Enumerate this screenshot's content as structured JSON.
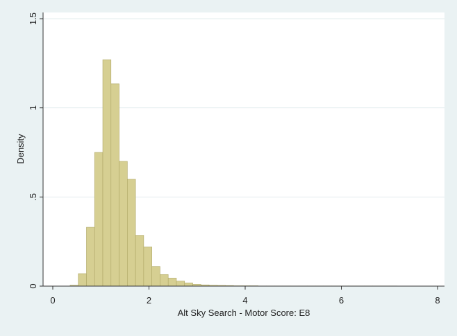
{
  "chart_data": {
    "type": "histogram",
    "xlabel": "Alt Sky Search - Motor Score: E8",
    "ylabel": "Density",
    "bins": [
      0.36,
      0.53,
      0.7,
      0.87,
      1.04,
      1.21,
      1.38,
      1.55,
      1.72,
      1.89,
      2.06,
      2.23,
      2.4,
      2.57,
      2.74,
      2.91,
      3.08,
      3.25,
      3.42,
      3.59,
      3.76,
      3.93,
      4.1,
      4.27,
      4.44,
      4.61,
      4.78,
      4.95,
      5.12,
      5.29,
      5.46,
      5.63,
      5.8,
      5.97,
      6.14,
      6.31,
      6.48,
      6.65,
      6.82,
      6.99,
      7.16
    ],
    "values": [
      0.005,
      0.07,
      0.33,
      0.75,
      1.27,
      1.135,
      0.7,
      0.6,
      0.285,
      0.22,
      0.11,
      0.065,
      0.045,
      0.028,
      0.018,
      0.01,
      0.007,
      0.005,
      0.004,
      0.003,
      0.002,
      0.002,
      0.002,
      0.001,
      0.001,
      0.001,
      0.001,
      0.001,
      0.001,
      0.001,
      0.001,
      0.001,
      0.001,
      0.001,
      0.001,
      0.001,
      0.001,
      0.001,
      0.001,
      0.001
    ],
    "color": "#d6cf92",
    "edge_color": "#aea766",
    "xlim": [
      0,
      8
    ],
    "xticks": [
      0,
      2,
      4,
      6,
      8
    ],
    "ylim": [
      0,
      1.5
    ],
    "yticks": [
      0,
      {
        "value": 0.5,
        "label": ".5"
      },
      1,
      1.5
    ],
    "grid": true
  }
}
